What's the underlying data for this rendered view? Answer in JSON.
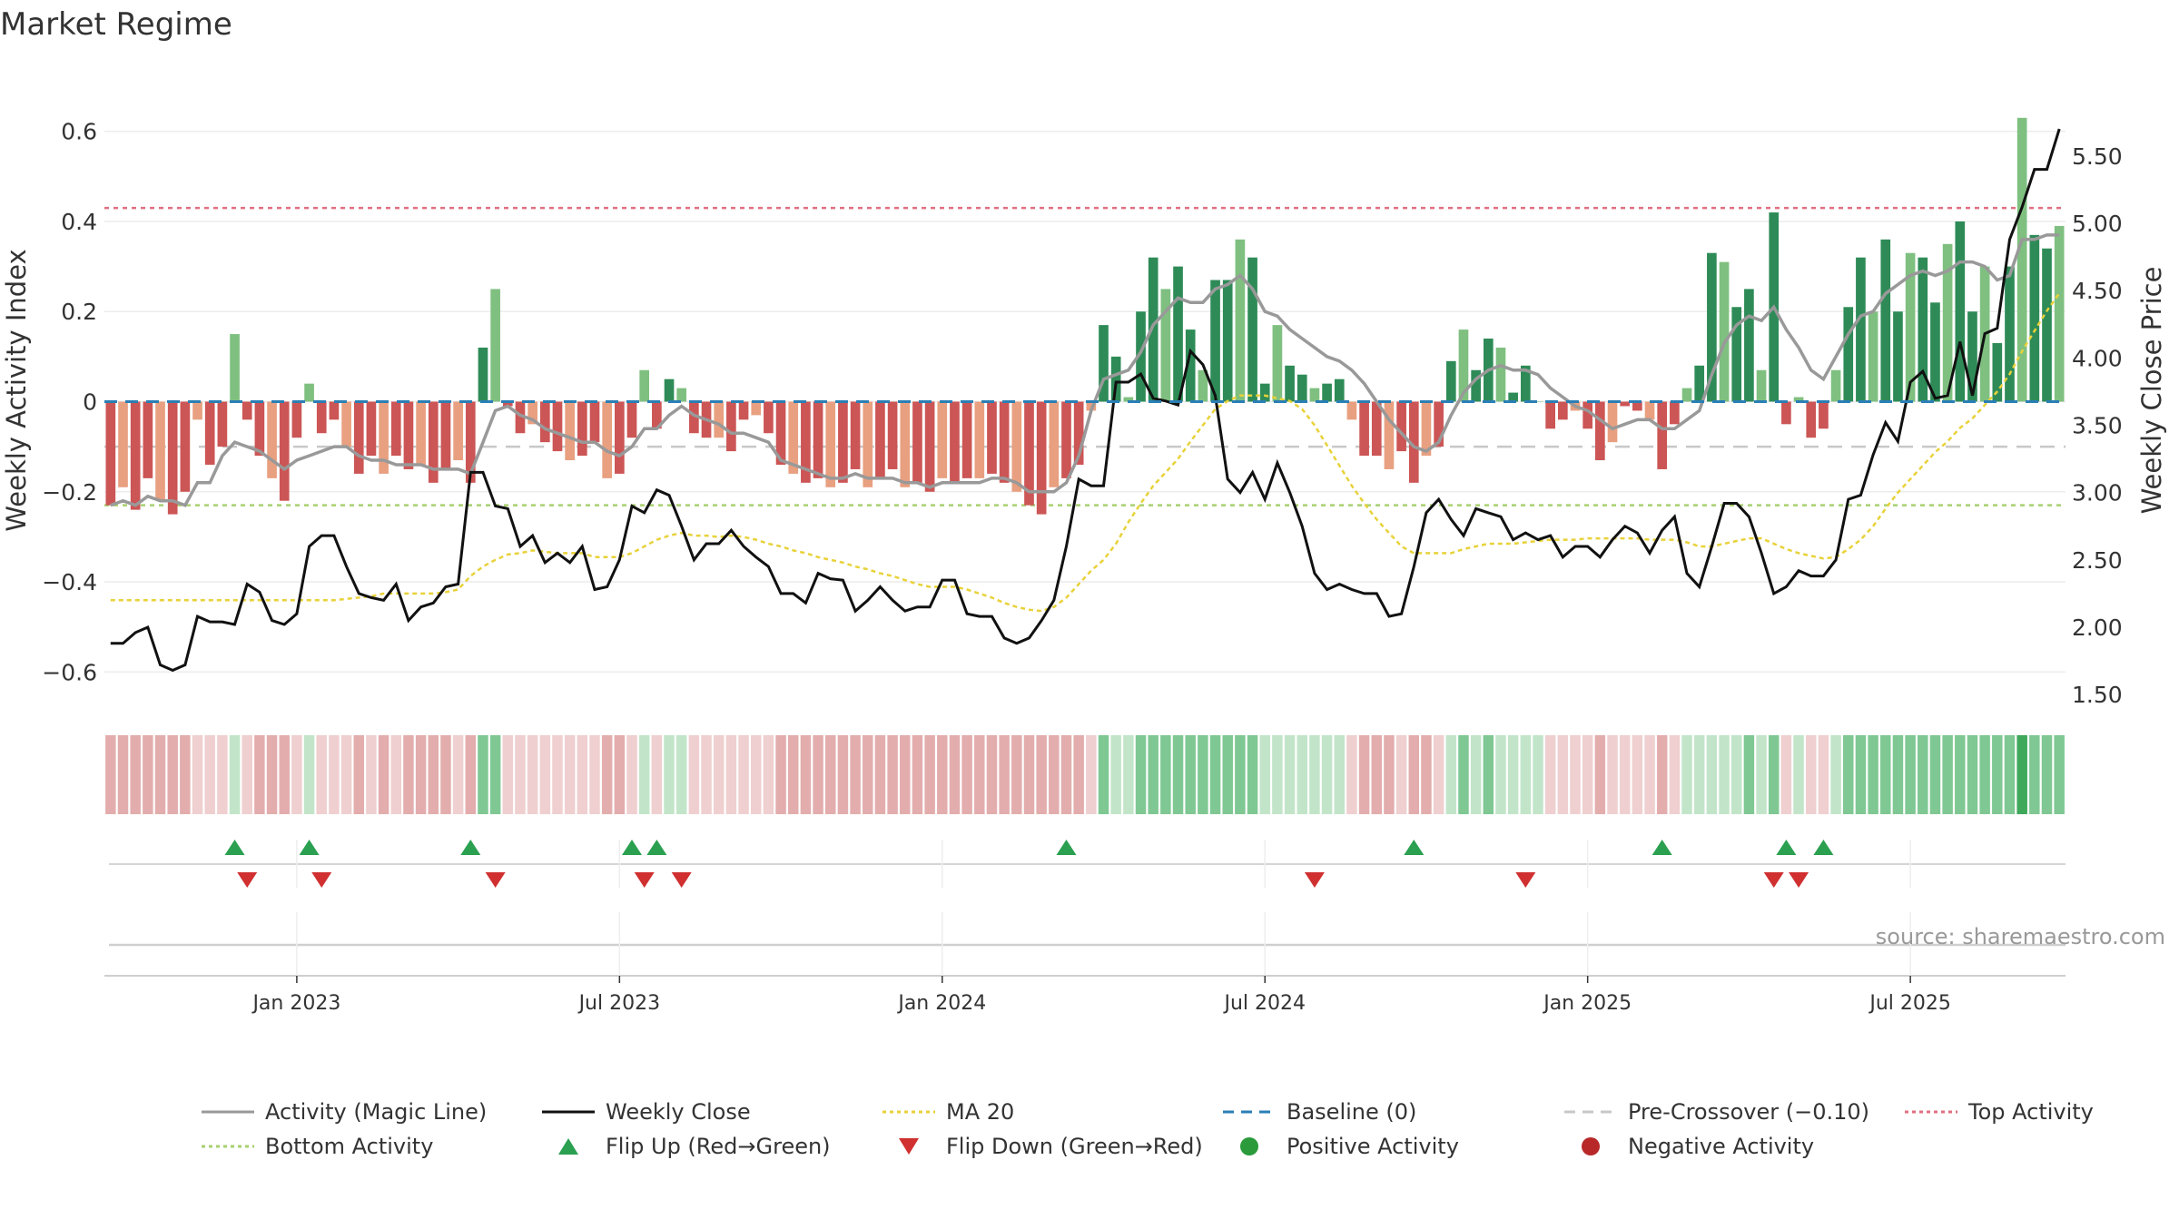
{
  "chart_data": {
    "type": "bar",
    "title": "Market Regime",
    "ylabel_left": "Weekly Activity Index",
    "ylabel_right": "Weekly Close Price",
    "ylim_left": [
      -0.68,
      0.68
    ],
    "ylim_right": [
      1.4,
      5.95
    ],
    "left_ticks": [
      0.6,
      0.4,
      0.2,
      0,
      -0.2,
      -0.4,
      -0.6
    ],
    "left_tick_labels": [
      "0.6",
      "0.4",
      "0.2",
      "0",
      "−0.2",
      "−0.4",
      "−0.6"
    ],
    "right_ticks": [
      5.5,
      5.0,
      4.5,
      4.0,
      3.5,
      3.0,
      2.5,
      2.0,
      1.5
    ],
    "right_tick_labels": [
      "5.50",
      "5.00",
      "4.50",
      "4.00",
      "3.50",
      "3.00",
      "2.50",
      "2.00",
      "1.50"
    ],
    "x_tick_labels": [
      "Jan 2023",
      "Jul 2023",
      "Jan 2024",
      "Jul 2024",
      "Jan 2025",
      "Jul 2025"
    ],
    "x_tick_weeks": [
      15,
      41,
      67,
      93,
      119,
      145
    ],
    "week_count": 158,
    "top_activity": 0.43,
    "bottom_activity": -0.23,
    "pre_crossover": -0.1,
    "baseline": 0,
    "activity": [
      -0.23,
      -0.19,
      -0.24,
      -0.17,
      -0.22,
      -0.25,
      -0.2,
      -0.04,
      -0.14,
      -0.1,
      0.15,
      -0.04,
      -0.12,
      -0.17,
      -0.22,
      -0.08,
      0.04,
      -0.07,
      -0.04,
      -0.1,
      -0.16,
      -0.12,
      -0.16,
      -0.12,
      -0.15,
      -0.14,
      -0.18,
      -0.15,
      -0.13,
      -0.18,
      0.12,
      0.25,
      -0.01,
      -0.07,
      -0.05,
      -0.09,
      -0.11,
      -0.13,
      -0.12,
      -0.09,
      -0.17,
      -0.16,
      -0.08,
      0.07,
      -0.06,
      0.05,
      0.03,
      -0.07,
      -0.08,
      -0.08,
      -0.11,
      -0.04,
      -0.03,
      -0.07,
      -0.14,
      -0.16,
      -0.18,
      -0.17,
      -0.19,
      -0.18,
      -0.15,
      -0.19,
      -0.17,
      -0.15,
      -0.19,
      -0.18,
      -0.2,
      -0.17,
      -0.18,
      -0.17,
      -0.17,
      -0.16,
      -0.18,
      -0.2,
      -0.23,
      -0.25,
      -0.19,
      -0.17,
      -0.14,
      -0.02,
      0.17,
      0.1,
      0.01,
      0.2,
      0.32,
      0.25,
      0.3,
      0.16,
      0.07,
      0.27,
      0.27,
      0.36,
      0.32,
      0.04,
      0.17,
      0.08,
      0.06,
      0.03,
      0.04,
      0.05,
      -0.04,
      -0.12,
      -0.12,
      -0.15,
      -0.11,
      -0.18,
      -0.12,
      -0.1,
      0.09,
      0.16,
      0.07,
      0.14,
      0.12,
      0.02,
      0.08,
      0,
      -0.06,
      -0.04,
      -0.02,
      -0.06,
      -0.13,
      -0.09,
      -0.01,
      -0.02,
      -0.04,
      -0.15,
      -0.05,
      0.03,
      0.08,
      0.33,
      0.31,
      0.21,
      0.25,
      0.07,
      0.42,
      -0.05,
      0.01,
      -0.08,
      -0.06,
      0.07,
      0.21,
      0.32,
      0.2,
      0.36,
      0.2,
      0.33,
      0.32,
      0.22,
      0.35,
      0.4,
      0.2,
      0.3,
      0.13,
      0.3,
      0.63,
      0.37,
      0.34,
      0.39
    ],
    "magic_line": [
      -0.23,
      -0.22,
      -0.23,
      -0.21,
      -0.22,
      -0.22,
      -0.23,
      -0.18,
      -0.18,
      -0.12,
      -0.09,
      -0.1,
      -0.11,
      -0.13,
      -0.15,
      -0.13,
      -0.12,
      -0.11,
      -0.1,
      -0.1,
      -0.12,
      -0.13,
      -0.13,
      -0.14,
      -0.14,
      -0.14,
      -0.15,
      -0.15,
      -0.15,
      -0.16,
      -0.09,
      -0.02,
      -0.01,
      -0.03,
      -0.04,
      -0.06,
      -0.07,
      -0.08,
      -0.09,
      -0.09,
      -0.11,
      -0.12,
      -0.1,
      -0.06,
      -0.06,
      -0.03,
      -0.01,
      -0.03,
      -0.04,
      -0.05,
      -0.07,
      -0.07,
      -0.08,
      -0.09,
      -0.13,
      -0.14,
      -0.15,
      -0.16,
      -0.17,
      -0.17,
      -0.16,
      -0.17,
      -0.17,
      -0.17,
      -0.18,
      -0.18,
      -0.19,
      -0.18,
      -0.18,
      -0.18,
      -0.18,
      -0.17,
      -0.17,
      -0.18,
      -0.2,
      -0.2,
      -0.2,
      -0.18,
      -0.12,
      -0.02,
      0.05,
      0.06,
      0.07,
      0.11,
      0.17,
      0.2,
      0.23,
      0.22,
      0.22,
      0.25,
      0.26,
      0.28,
      0.25,
      0.2,
      0.19,
      0.16,
      0.14,
      0.12,
      0.1,
      0.09,
      0.07,
      0.04,
      0,
      -0.04,
      -0.07,
      -0.1,
      -0.11,
      -0.09,
      -0.03,
      0.02,
      0.05,
      0.07,
      0.08,
      0.07,
      0.07,
      0.06,
      0.03,
      0.01,
      -0.01,
      -0.02,
      -0.04,
      -0.06,
      -0.05,
      -0.04,
      -0.04,
      -0.06,
      -0.06,
      -0.04,
      -0.02,
      0.06,
      0.13,
      0.17,
      0.19,
      0.18,
      0.21,
      0.16,
      0.12,
      0.07,
      0.05,
      0.1,
      0.15,
      0.19,
      0.2,
      0.24,
      0.26,
      0.28,
      0.29,
      0.28,
      0.29,
      0.31,
      0.31,
      0.3,
      0.27,
      0.28,
      0.36,
      0.36,
      0.37,
      0.37
    ],
    "weekly_close": [
      1.88,
      1.88,
      1.96,
      2.0,
      1.72,
      1.68,
      1.72,
      2.08,
      2.04,
      2.04,
      2.02,
      2.32,
      2.26,
      2.05,
      2.02,
      2.1,
      2.6,
      2.68,
      2.68,
      2.45,
      2.25,
      2.22,
      2.2,
      2.32,
      2.05,
      2.15,
      2.18,
      2.3,
      2.32,
      3.15,
      3.15,
      2.9,
      2.88,
      2.6,
      2.68,
      2.48,
      2.55,
      2.48,
      2.6,
      2.28,
      2.3,
      2.5,
      2.9,
      2.85,
      3.02,
      2.98,
      2.75,
      2.5,
      2.62,
      2.62,
      2.72,
      2.6,
      2.52,
      2.45,
      2.25,
      2.25,
      2.18,
      2.4,
      2.36,
      2.35,
      2.12,
      2.2,
      2.3,
      2.2,
      2.12,
      2.15,
      2.15,
      2.35,
      2.35,
      2.1,
      2.08,
      2.08,
      1.92,
      1.88,
      1.92,
      2.05,
      2.2,
      2.6,
      3.1,
      3.05,
      3.05,
      3.82,
      3.82,
      3.88,
      3.7,
      3.68,
      3.65,
      4.05,
      3.95,
      3.72,
      3.1,
      3.0,
      3.15,
      2.95,
      3.22,
      3.0,
      2.75,
      2.4,
      2.28,
      2.32,
      2.28,
      2.25,
      2.25,
      2.08,
      2.1,
      2.45,
      2.85,
      2.95,
      2.8,
      2.68,
      2.88,
      2.85,
      2.82,
      2.65,
      2.7,
      2.65,
      2.68,
      2.52,
      2.6,
      2.6,
      2.52,
      2.65,
      2.75,
      2.7,
      2.55,
      2.72,
      2.82,
      2.4,
      2.3,
      2.6,
      2.92,
      2.92,
      2.82,
      2.55,
      2.25,
      2.3,
      2.42,
      2.38,
      2.38,
      2.5,
      2.95,
      2.98,
      3.28,
      3.52,
      3.38,
      3.82,
      3.9,
      3.7,
      3.72,
      4.12,
      3.72,
      4.18,
      4.22,
      4.88,
      5.12,
      5.4,
      5.4,
      5.7
    ],
    "ma20": [
      2.2,
      2.2,
      2.2,
      2.2,
      2.2,
      2.2,
      2.2,
      2.2,
      2.2,
      2.2,
      2.2,
      2.2,
      2.2,
      2.2,
      2.2,
      2.2,
      2.2,
      2.2,
      2.2,
      2.21,
      2.22,
      2.23,
      2.25,
      2.25,
      2.25,
      2.25,
      2.25,
      2.26,
      2.28,
      2.38,
      2.45,
      2.5,
      2.54,
      2.55,
      2.57,
      2.56,
      2.55,
      2.55,
      2.55,
      2.52,
      2.52,
      2.52,
      2.55,
      2.6,
      2.65,
      2.68,
      2.7,
      2.68,
      2.68,
      2.67,
      2.68,
      2.67,
      2.65,
      2.62,
      2.6,
      2.57,
      2.55,
      2.52,
      2.5,
      2.48,
      2.45,
      2.43,
      2.4,
      2.38,
      2.35,
      2.32,
      2.3,
      2.3,
      2.3,
      2.28,
      2.25,
      2.22,
      2.18,
      2.15,
      2.13,
      2.12,
      2.15,
      2.22,
      2.32,
      2.42,
      2.5,
      2.62,
      2.78,
      2.92,
      3.05,
      3.15,
      3.25,
      3.38,
      3.5,
      3.62,
      3.68,
      3.72,
      3.72,
      3.72,
      3.7,
      3.68,
      3.62,
      3.5,
      3.35,
      3.2,
      3.05,
      2.92,
      2.8,
      2.7,
      2.6,
      2.55,
      2.55,
      2.55,
      2.55,
      2.58,
      2.6,
      2.62,
      2.62,
      2.62,
      2.63,
      2.64,
      2.65,
      2.65,
      2.65,
      2.66,
      2.66,
      2.66,
      2.66,
      2.66,
      2.65,
      2.65,
      2.65,
      2.63,
      2.6,
      2.6,
      2.62,
      2.64,
      2.66,
      2.66,
      2.62,
      2.58,
      2.55,
      2.53,
      2.51,
      2.52,
      2.58,
      2.65,
      2.75,
      2.88,
      3.0,
      3.1,
      3.2,
      3.3,
      3.38,
      3.48,
      3.55,
      3.65,
      3.75,
      3.88,
      4.05,
      4.2,
      4.35,
      4.48
    ],
    "heatmap_levels": [
      -2,
      -2,
      -2,
      -2,
      -2,
      -2,
      -2,
      -1,
      -1,
      -1,
      1,
      -1,
      -2,
      -2,
      -2,
      -1,
      1,
      -1,
      -1,
      -1,
      -2,
      -1,
      -2,
      -1,
      -2,
      -2,
      -2,
      -2,
      -1,
      -2,
      2,
      2,
      -1,
      -1,
      -1,
      -1,
      -1,
      -1,
      -1,
      -1,
      -2,
      -2,
      -1,
      1,
      -1,
      1,
      1,
      -1,
      -1,
      -1,
      -1,
      -1,
      -1,
      -1,
      -2,
      -2,
      -2,
      -2,
      -2,
      -2,
      -2,
      -2,
      -2,
      -2,
      -2,
      -2,
      -2,
      -2,
      -2,
      -2,
      -2,
      -2,
      -2,
      -2,
      -2,
      -2,
      -2,
      -2,
      -2,
      -1,
      2,
      1,
      1,
      2,
      2,
      2,
      2,
      2,
      2,
      2,
      2,
      2,
      2,
      1,
      1,
      1,
      1,
      1,
      1,
      1,
      -1,
      -2,
      -2,
      -2,
      -1,
      -2,
      -2,
      -1,
      1,
      2,
      1,
      2,
      1,
      1,
      1,
      1,
      -1,
      -1,
      -1,
      -1,
      -2,
      -1,
      -1,
      -1,
      -1,
      -2,
      -1,
      1,
      1,
      1,
      1,
      1,
      2,
      1,
      2,
      -1,
      1,
      -1,
      -1,
      1,
      2,
      2,
      2,
      2,
      2,
      2,
      2,
      2,
      2,
      2,
      2,
      2,
      2,
      2,
      3,
      2,
      2,
      2
    ],
    "flip_up_weeks": [
      10,
      16,
      29,
      42,
      44,
      77,
      105,
      125,
      135,
      138
    ],
    "flip_down_weeks": [
      11,
      17,
      31,
      43,
      46,
      97,
      114,
      134,
      136
    ],
    "source": "source: sharemaestro.com",
    "legend": [
      {
        "label": "Activity (Magic Line)",
        "kind": "line",
        "color": "#999999",
        "dash": ""
      },
      {
        "label": "Weekly Close",
        "kind": "line",
        "color": "#111111",
        "dash": ""
      },
      {
        "label": "MA 20",
        "kind": "line",
        "color": "#e8d23a",
        "dash": "4,4"
      },
      {
        "label": "Baseline (0)",
        "kind": "line",
        "color": "#2a7fb5",
        "dash": "12,8"
      },
      {
        "label": "Pre-Crossover (−0.10)",
        "kind": "line",
        "color": "#c8c8c8",
        "dash": "12,8"
      },
      {
        "label": "Top Activity",
        "kind": "line",
        "color": "#e07080",
        "dash": "4,4"
      },
      {
        "label": "Bottom Activity",
        "kind": "line",
        "color": "#a8d070",
        "dash": "4,4"
      },
      {
        "label": "Flip Up (Red→Green)",
        "kind": "tri-up",
        "color": "#2aa050",
        "dash": ""
      },
      {
        "label": "Flip Down (Green→Red)",
        "kind": "tri-down",
        "color": "#d03030",
        "dash": ""
      },
      {
        "label": "Positive Activity",
        "kind": "dot",
        "color": "#2a9a3a",
        "dash": ""
      },
      {
        "label": "Negative Activity",
        "kind": "dot",
        "color": "#b82828",
        "dash": ""
      }
    ],
    "colors": {
      "pos_strong": "#2e8b57",
      "pos_light": "#7fc080",
      "neg_strong": "#cc5555",
      "neg_light": "#e8a080",
      "magic": "#999999",
      "close": "#111111",
      "ma": "#e8d23a",
      "baseline": "#2a7fb5",
      "precross": "#c8c8c8",
      "top": "#e07080",
      "bottom": "#a8d070",
      "flip_up": "#2aa050",
      "flip_down": "#d03030"
    }
  }
}
